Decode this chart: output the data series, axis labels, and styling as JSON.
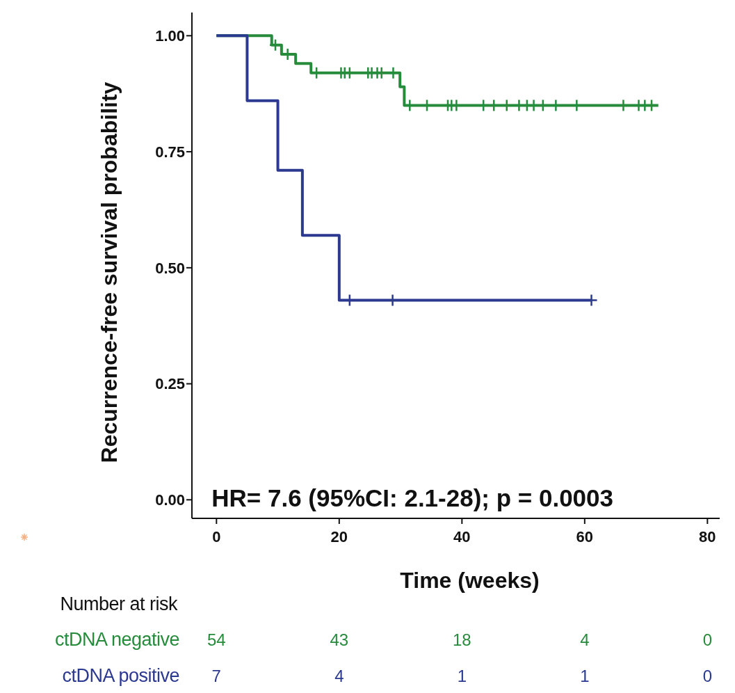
{
  "chart_data": {
    "type": "step",
    "xlabel": "Time (weeks)",
    "ylabel": "Recurrence-free survival probability",
    "xlim": [
      -4,
      82
    ],
    "xticks": [
      0,
      20,
      40,
      60,
      80
    ],
    "ylim": [
      -0.04,
      1.05
    ],
    "yticks": [
      {
        "value": 0,
        "label": "0.00"
      },
      {
        "value": 0.25,
        "label": "0.25"
      },
      {
        "value": 0.5,
        "label": "0.50"
      },
      {
        "value": 0.75,
        "label": "0.75"
      },
      {
        "value": 1,
        "label": "1.00"
      }
    ],
    "grid": false,
    "line_style": "solid",
    "series": [
      {
        "color": "#268c3c",
        "x": [
          0,
          9,
          10.6,
          12.9,
          15.4,
          29.9,
          30.6,
          72
        ],
        "values": [
          1,
          0.98,
          0.96,
          0.94,
          0.92,
          0.89,
          0.85,
          0.85
        ]
      },
      {
        "color": "#2b3990",
        "x": [
          0,
          5,
          10,
          14,
          20,
          61
        ],
        "values": [
          1,
          0.86,
          0.71,
          0.57,
          0.43,
          0.43
        ]
      },
      {
        "type": "scatter",
        "marker": "cross",
        "color": "#268c3c",
        "x": [
          9.6,
          11.6,
          16.3,
          20.3,
          20.9,
          21.7,
          24.7,
          25.3,
          26.2,
          26.9,
          28.8,
          31.5,
          34.3,
          37.7,
          38.3,
          39.1,
          43.5,
          45.2,
          47.3,
          49.3,
          50.6,
          51.7,
          53.2,
          55.3,
          58.7,
          66.3,
          68.8,
          69.8,
          70.9
        ],
        "values": [
          0.98,
          0.96,
          0.92,
          0.92,
          0.92,
          0.92,
          0.92,
          0.92,
          0.92,
          0.92,
          0.92,
          0.85,
          0.85,
          0.85,
          0.85,
          0.85,
          0.85,
          0.85,
          0.85,
          0.85,
          0.85,
          0.85,
          0.85,
          0.85,
          0.85,
          0.85,
          0.85,
          0.85,
          0.85
        ]
      },
      {
        "type": "scatter",
        "marker": "cross",
        "color": "#2b3990",
        "x": [
          21.7,
          28.7,
          61.1
        ],
        "values": [
          0.43,
          0.43,
          0.43
        ]
      }
    ],
    "annotations": [
      "HR= 7.6 (95%CI: 2.1-28); p = 0.0003",
      "Number at risk",
      "ctDNA negative",
      "54",
      "43",
      "18",
      "4",
      "0",
      "ctDNA positive",
      "7",
      "4",
      "1",
      "1",
      "0"
    ]
  }
}
